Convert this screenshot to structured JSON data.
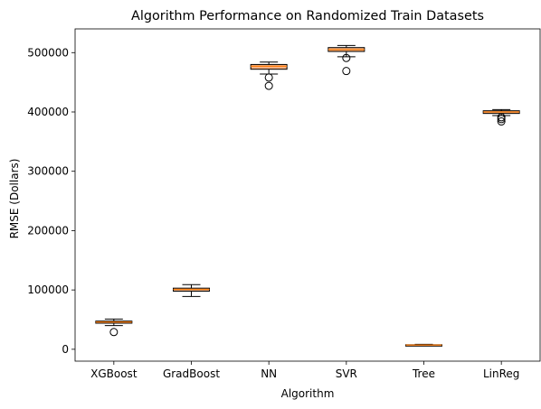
{
  "chart_data": {
    "type": "box",
    "title": "Algorithm Performance on Randomized Train Datasets",
    "xlabel": "Algorithm",
    "ylabel": "RMSE (Dollars)",
    "ylim": [
      -20000,
      540000
    ],
    "yticks": [
      0,
      100000,
      200000,
      300000,
      400000,
      500000
    ],
    "ytick_labels": [
      "0",
      "100000",
      "200000",
      "300000",
      "400000",
      "500000"
    ],
    "grid": false,
    "box_color": "#f4b183",
    "median_color": "#ff7f0e",
    "categories": [
      "XGBoost",
      "GradBoost",
      "NN",
      "SVR",
      "Tree",
      "LinReg"
    ],
    "boxes": [
      {
        "name": "XGBoost",
        "whisker_low": 40000,
        "q1": 44000,
        "median": 46000,
        "q3": 47500,
        "whisker_high": 51000,
        "outliers": [
          29000
        ]
      },
      {
        "name": "GradBoost",
        "whisker_low": 89000,
        "q1": 98000,
        "median": 101000,
        "q3": 103000,
        "whisker_high": 109000,
        "outliers": []
      },
      {
        "name": "NN",
        "whisker_low": 464000,
        "q1": 472000,
        "median": 477000,
        "q3": 480000,
        "whisker_high": 484000,
        "outliers": [
          458000,
          444000
        ]
      },
      {
        "name": "SVR",
        "whisker_low": 493000,
        "q1": 502000,
        "median": 505000,
        "q3": 508500,
        "whisker_high": 512000,
        "outliers": [
          491000,
          469000
        ]
      },
      {
        "name": "Tree",
        "whisker_low": 6000,
        "q1": 6800,
        "median": 7200,
        "q3": 7700,
        "whisker_high": 8300,
        "outliers": []
      },
      {
        "name": "LinReg",
        "whisker_low": 394000,
        "q1": 397500,
        "median": 400000,
        "q3": 402000,
        "whisker_high": 404000,
        "outliers": [
          391000,
          388000,
          384000
        ]
      }
    ]
  }
}
